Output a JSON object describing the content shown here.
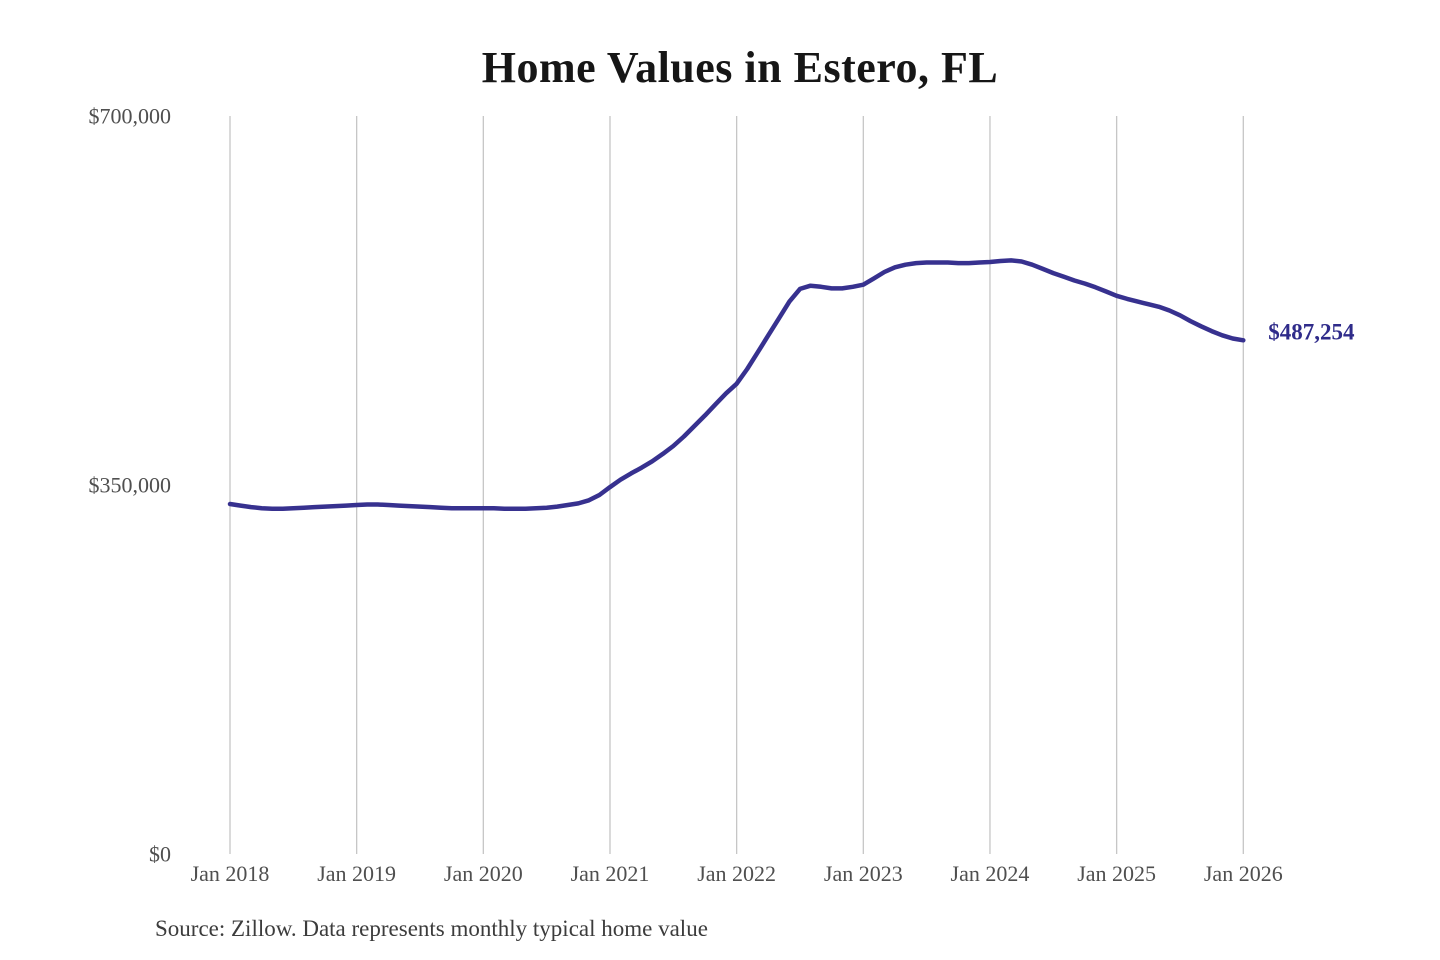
{
  "title": "Home Values in Estero, FL",
  "source_note": "Source: Zillow. Data represents monthly typical home value",
  "colors": {
    "line": "#37318f",
    "annotation": "#2f2b8a",
    "grid": "#c6c6c6",
    "axis_label": "#4f4f4f",
    "title": "#161616",
    "source": "#3c3c3c",
    "background": "#ffffff"
  },
  "chart_data": {
    "type": "line",
    "title": "Home Values in Estero, FL",
    "xlabel": "",
    "ylabel": "",
    "grid": "vertical-only",
    "legend_position": "none",
    "ylim": [
      0,
      700000
    ],
    "y_ticks": [
      {
        "value": 0,
        "label": "$0"
      },
      {
        "value": 350000,
        "label": "$350,000"
      },
      {
        "value": 700000,
        "label": "$700,000"
      }
    ],
    "x_tick_labels": [
      "Jan 2018",
      "Jan 2019",
      "Jan 2020",
      "Jan 2021",
      "Jan 2022",
      "Jan 2023",
      "Jan 2024",
      "Jan 2025",
      "Jan 2026"
    ],
    "x_start": "Jan 2018",
    "x_end": "Jan 2026",
    "x_interval": "monthly",
    "series": [
      {
        "name": "Monthly typical home value",
        "values": [
          332000,
          330500,
          329000,
          328000,
          327500,
          327500,
          328000,
          328500,
          329000,
          329500,
          330000,
          330500,
          331000,
          331500,
          331500,
          331000,
          330500,
          330000,
          329500,
          329000,
          328500,
          328000,
          328000,
          328000,
          328000,
          328000,
          327500,
          327500,
          327500,
          328000,
          328500,
          329500,
          331000,
          332500,
          335500,
          340500,
          348000,
          355000,
          361000,
          366500,
          372500,
          379500,
          387000,
          396000,
          406000,
          416000,
          426500,
          437000,
          446000,
          460000,
          476000,
          492000,
          508000,
          524000,
          536000,
          539000,
          538000,
          536500,
          536500,
          538000,
          540000,
          546000,
          552000,
          556500,
          559000,
          560500,
          561000,
          561000,
          561000,
          560500,
          560500,
          561000,
          561500,
          562500,
          563000,
          562000,
          559000,
          555000,
          551000,
          547500,
          544000,
          541000,
          537500,
          533500,
          529500,
          526500,
          524000,
          521500,
          519000,
          515500,
          511000,
          505500,
          500500,
          496000,
          492000,
          489000,
          487254
        ]
      }
    ],
    "annotation": {
      "label": "$487,254",
      "value": 487254,
      "position": "end-of-line"
    }
  }
}
